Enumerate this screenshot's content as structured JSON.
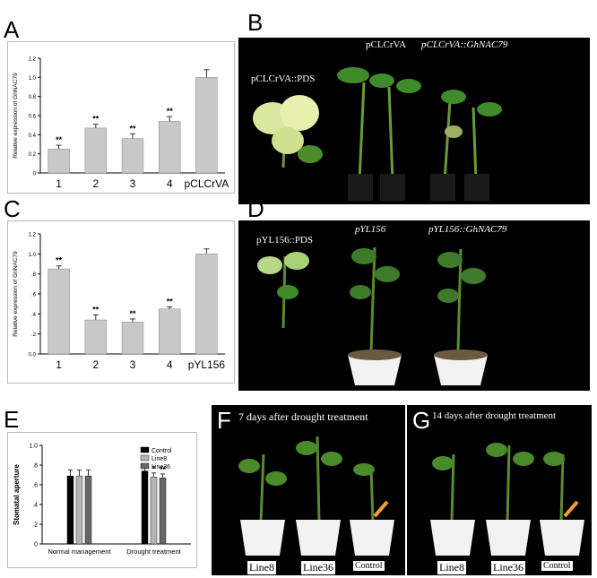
{
  "panels": {
    "A": {
      "letter": "A"
    },
    "B": {
      "letter": "B",
      "labels": [
        "pCLCrVA::PDS",
        "pCLCrVA",
        "pCLCrVA::GhNAC79"
      ]
    },
    "C": {
      "letter": "C"
    },
    "D": {
      "letter": "D",
      "labels": [
        "pYL156::PDS",
        "pYL156",
        "pYL156::GhNAC79"
      ]
    },
    "E": {
      "letter": "E"
    },
    "F": {
      "letter": "F",
      "title": "7 days after drought treatment",
      "labels": [
        "Line8",
        "Line36",
        "Control"
      ]
    },
    "G": {
      "letter": "G",
      "title": "14 days after drought treatment",
      "labels": [
        "Line8",
        "Line36",
        "Control"
      ]
    }
  },
  "chart_data": [
    {
      "id": "A",
      "type": "bar",
      "categories": [
        "1",
        "2",
        "3",
        "4",
        "pCLCrVA"
      ],
      "values": [
        0.25,
        0.47,
        0.36,
        0.54,
        1.0
      ],
      "errors": [
        0.04,
        0.04,
        0.05,
        0.05,
        0.08
      ],
      "significance": [
        "**",
        "**",
        "**",
        "**",
        ""
      ],
      "ylabel": "Relative expression of GhNAC79",
      "ylim": [
        0,
        1.2
      ],
      "yticks": [
        "0",
        "0.2",
        "0.4",
        "0.6",
        "0.8",
        "1.0",
        "1.2"
      ],
      "color": "#c8c8c8"
    },
    {
      "id": "C",
      "type": "bar",
      "categories": [
        "1",
        "2",
        "3",
        "4",
        "pYL156"
      ],
      "values": [
        0.85,
        0.34,
        0.32,
        0.45,
        1.0
      ],
      "errors": [
        0.03,
        0.05,
        0.03,
        0.02,
        0.05
      ],
      "significance": [
        "**",
        "**",
        "**",
        "**",
        ""
      ],
      "ylabel": "Relative expression of GhNAC79",
      "ylim": [
        0,
        1.2
      ],
      "yticks": [
        "0.0",
        ".2",
        ".4",
        ".6",
        ".8",
        "1.0",
        "1.2"
      ],
      "color": "#c8c8c8"
    },
    {
      "id": "E",
      "type": "bar",
      "categories": [
        "Normal management",
        "Drought treatment"
      ],
      "series": [
        {
          "name": "Control",
          "values": [
            0.69,
            0.74
          ],
          "errors": [
            0.06,
            0.06
          ],
          "color": "#000000"
        },
        {
          "name": "Line8",
          "values": [
            0.69,
            0.68
          ],
          "errors": [
            0.06,
            0.04
          ],
          "color": "#b4b4b4"
        },
        {
          "name": "Line36",
          "values": [
            0.69,
            0.67
          ],
          "errors": [
            0.06,
            0.04
          ],
          "color": "#666666"
        }
      ],
      "significance": [
        "",
        "",
        "",
        "",
        "*",
        "**"
      ],
      "ylabel": "Stomatal aperture",
      "ylim": [
        0,
        1.0
      ],
      "yticks": [
        "0",
        ".2",
        ".4",
        ".6",
        ".8",
        "1.0"
      ],
      "legend": "top-right"
    }
  ]
}
